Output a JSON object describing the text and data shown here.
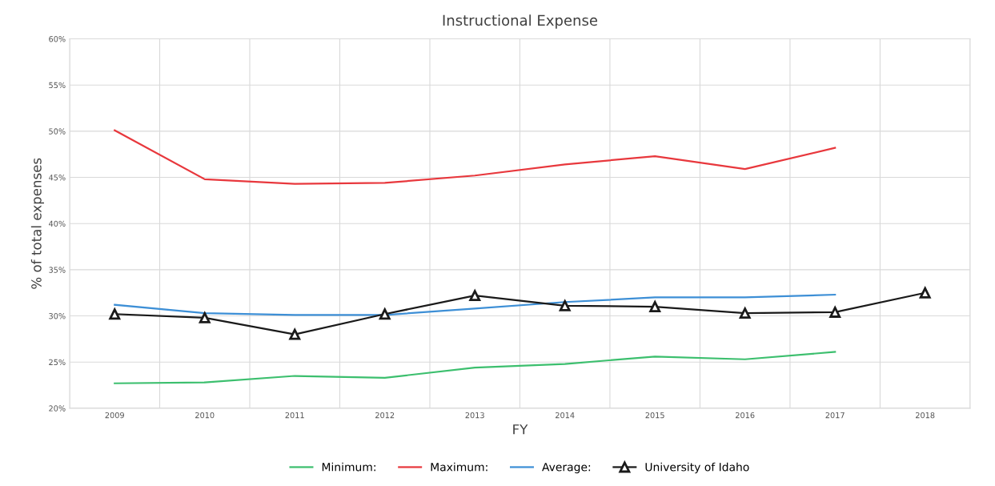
{
  "chart_data": {
    "type": "line",
    "title": "Instructional Expense",
    "xlabel": "FY",
    "ylabel": "% of total expenses",
    "categories": [
      "2009",
      "2010",
      "2011",
      "2012",
      "2013",
      "2014",
      "2015",
      "2016",
      "2017",
      "2018"
    ],
    "series": [
      {
        "name": "Minimum:",
        "color": "#3cbf6e",
        "marker": "none",
        "values": [
          22.7,
          22.8,
          23.5,
          23.3,
          24.4,
          24.8,
          25.6,
          25.3,
          26.1,
          null
        ]
      },
      {
        "name": "Maximum:",
        "color": "#e8383d",
        "marker": "none",
        "values": [
          50.1,
          44.8,
          44.3,
          44.4,
          45.2,
          46.4,
          47.3,
          45.9,
          48.2,
          null
        ]
      },
      {
        "name": "Average:",
        "color": "#3d8fd6",
        "marker": "none",
        "values": [
          31.2,
          30.3,
          30.1,
          30.1,
          30.8,
          31.5,
          32.0,
          32.0,
          32.3,
          null
        ]
      },
      {
        "name": "University of Idaho",
        "color": "#1a1a1a",
        "marker": "triangle",
        "values": [
          30.2,
          29.8,
          28.0,
          30.2,
          32.2,
          31.1,
          31.0,
          30.3,
          30.4,
          32.5
        ]
      }
    ],
    "ylim": [
      20,
      60
    ],
    "yticks": [
      {
        "value": 20,
        "label": "20%"
      },
      {
        "value": 25,
        "label": "25%"
      },
      {
        "value": 30,
        "label": "30%"
      },
      {
        "value": 35,
        "label": "35%"
      },
      {
        "value": 40,
        "label": "40%"
      },
      {
        "value": 45,
        "label": "45%"
      },
      {
        "value": 50,
        "label": "50%"
      },
      {
        "value": 55,
        "label": "55%"
      },
      {
        "value": 60,
        "label": "60%"
      }
    ],
    "grid": true,
    "legend": "bottom",
    "line_style": "solid"
  }
}
